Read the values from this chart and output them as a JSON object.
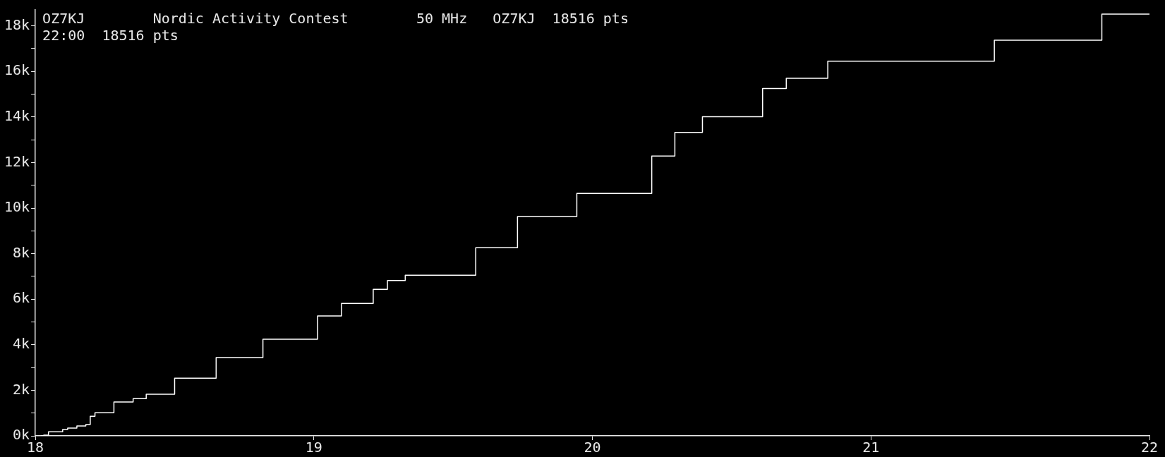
{
  "chart_data": {
    "type": "step",
    "title": "OZ7KJ        Nordic Activity Contest        50 MHz   OZ7KJ  18516 pts",
    "subtitle": "22:00  18516 pts",
    "x": [
      18.02,
      18.03,
      18.047,
      18.098,
      18.116,
      18.149,
      18.181,
      18.197,
      18.214,
      18.282,
      18.351,
      18.398,
      18.5,
      18.649,
      18.817,
      19.013,
      19.099,
      19.213,
      19.264,
      19.328,
      19.581,
      19.731,
      19.944,
      20.213,
      20.296,
      20.395,
      20.611,
      20.696,
      20.845,
      21.443,
      21.829,
      22
    ],
    "series": [
      {
        "color": "#ffffff",
        "values": [
          0,
          30,
          177,
          279,
          341,
          434,
          496,
          859,
          1014,
          1489,
          1634,
          1830,
          2533,
          3433,
          4240,
          5260,
          5810,
          6430,
          6820,
          7050,
          8260,
          9630,
          10640,
          12280,
          13320,
          14010,
          15250,
          15700,
          16450,
          17370,
          18516,
          18516
        ]
      }
    ],
    "xlim": [
      18,
      22
    ],
    "xticks": [
      18,
      19,
      20,
      21,
      22
    ],
    "ylim": [
      0,
      18700
    ],
    "yticks": [
      {
        "value": 0,
        "label": "0k"
      },
      {
        "value": 1000,
        "label": null
      },
      {
        "value": 2000,
        "label": "2k"
      },
      {
        "value": 3000,
        "label": null
      },
      {
        "value": 4000,
        "label": "4k"
      },
      {
        "value": 5000,
        "label": null
      },
      {
        "value": 6000,
        "label": "6k"
      },
      {
        "value": 7000,
        "label": null
      },
      {
        "value": 8000,
        "label": "8k"
      },
      {
        "value": 9000,
        "label": null
      },
      {
        "value": 10000,
        "label": "10k"
      },
      {
        "value": 11000,
        "label": null
      },
      {
        "value": 12000,
        "label": "12k"
      },
      {
        "value": 13000,
        "label": null
      },
      {
        "value": 14000,
        "label": "14k"
      },
      {
        "value": 15000,
        "label": null
      },
      {
        "value": 16000,
        "label": "16k"
      },
      {
        "value": 17000,
        "label": null
      },
      {
        "value": 18000,
        "label": "18k"
      }
    ]
  }
}
